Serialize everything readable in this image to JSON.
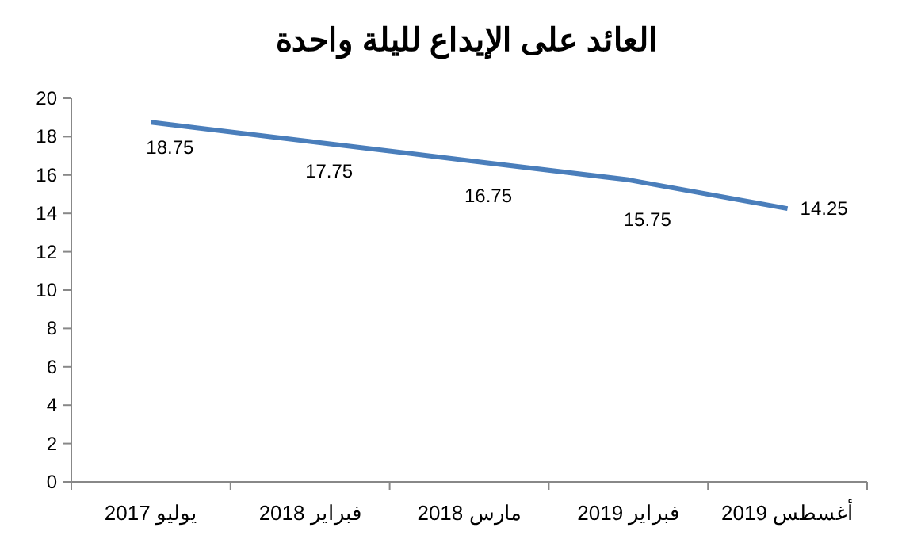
{
  "chart_data": {
    "type": "line",
    "title": "العائد على الإيداع لليلة واحدة",
    "categories": [
      "يوليو 2017",
      "فبراير 2018",
      "مارس 2018",
      "فبراير 2019",
      "أغسطس 2019"
    ],
    "series": [
      {
        "color": "#4a7ebb",
        "values": [
          18.75,
          17.75,
          16.75,
          15.75,
          14.25
        ]
      }
    ],
    "ylim": [
      0,
      20
    ],
    "yticks": [
      0,
      2,
      4,
      6,
      8,
      10,
      12,
      14,
      16,
      18,
      20
    ],
    "grid": false,
    "marker": "none",
    "line_style": "solid",
    "data_labels": true
  }
}
